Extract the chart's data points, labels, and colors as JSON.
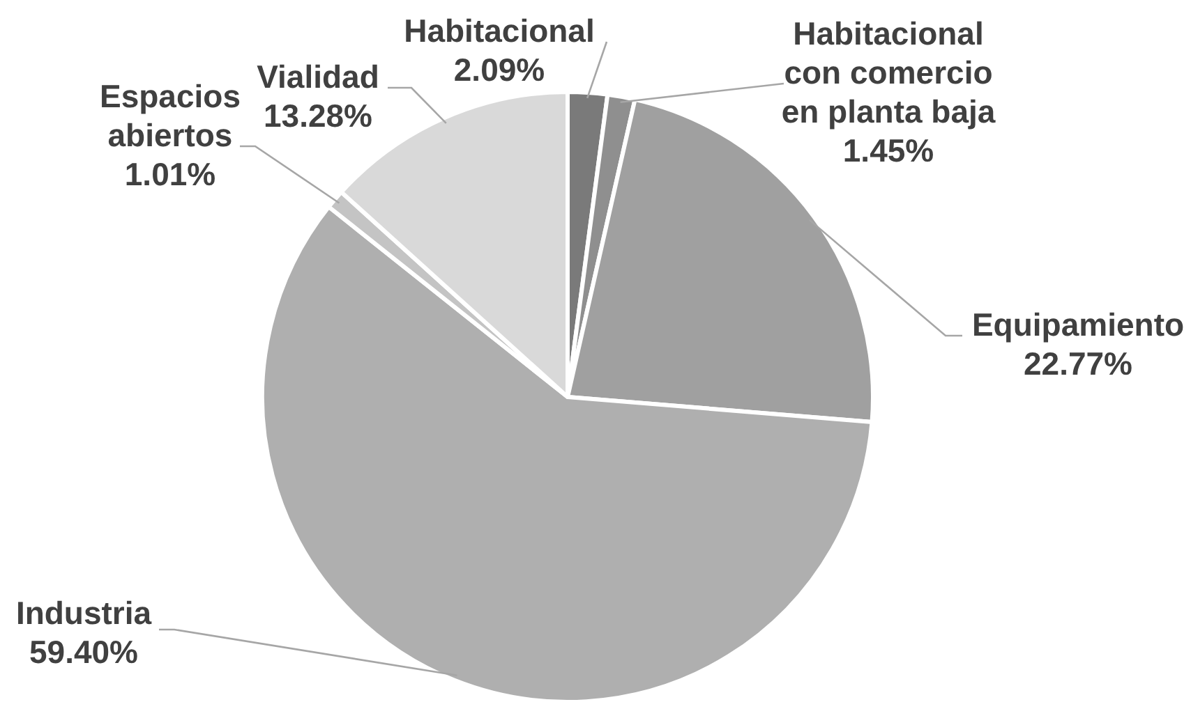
{
  "chart_data": {
    "type": "pie",
    "categories": [
      "Habitacional",
      "Habitacional con comercio en planta baja",
      "Equipamiento",
      "Industria",
      "Espacios abiertos",
      "Vialidad"
    ],
    "values": [
      2.09,
      1.45,
      22.77,
      59.4,
      1.01,
      13.28
    ],
    "value_labels": [
      "2.09%",
      "1.45%",
      "22.77%",
      "59.40%",
      "1.01%",
      "13.28%"
    ],
    "colors": [
      "#7a7a7a",
      "#8f8f8f",
      "#a0a0a0",
      "#afafaf",
      "#c4c4c4",
      "#d9d9d9"
    ]
  }
}
